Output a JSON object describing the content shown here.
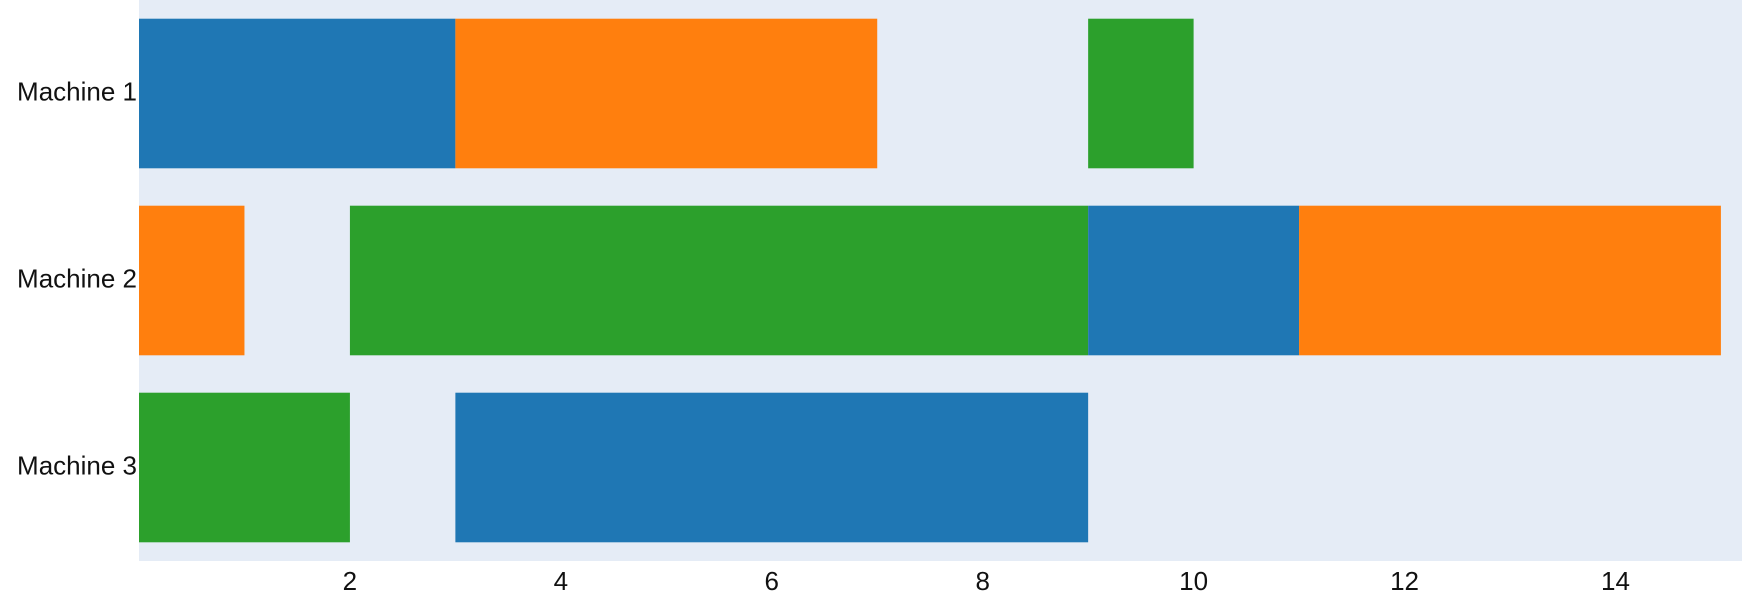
{
  "chart_data": {
    "type": "gantt",
    "categories": [
      "Machine 1",
      "Machine 2",
      "Machine 3"
    ],
    "tasks": [
      [
        {
          "start": 0,
          "end": 3,
          "color": "#1f77b4"
        },
        {
          "start": 3,
          "end": 7,
          "color": "#ff7f0e"
        },
        {
          "start": 9,
          "end": 10,
          "color": "#2ca02c"
        }
      ],
      [
        {
          "start": 0,
          "end": 1,
          "color": "#ff7f0e"
        },
        {
          "start": 2,
          "end": 9,
          "color": "#2ca02c"
        },
        {
          "start": 9,
          "end": 11,
          "color": "#1f77b4"
        },
        {
          "start": 11,
          "end": 15,
          "color": "#ff7f0e"
        }
      ],
      [
        {
          "start": 0,
          "end": 2,
          "color": "#2ca02c"
        },
        {
          "start": 3,
          "end": 9,
          "color": "#1f77b4"
        }
      ]
    ],
    "xlim": [
      0,
      15.2
    ],
    "xticks": [
      2,
      4,
      6,
      8,
      10,
      12,
      14
    ],
    "grid": false,
    "background": "#e5ecf6"
  }
}
